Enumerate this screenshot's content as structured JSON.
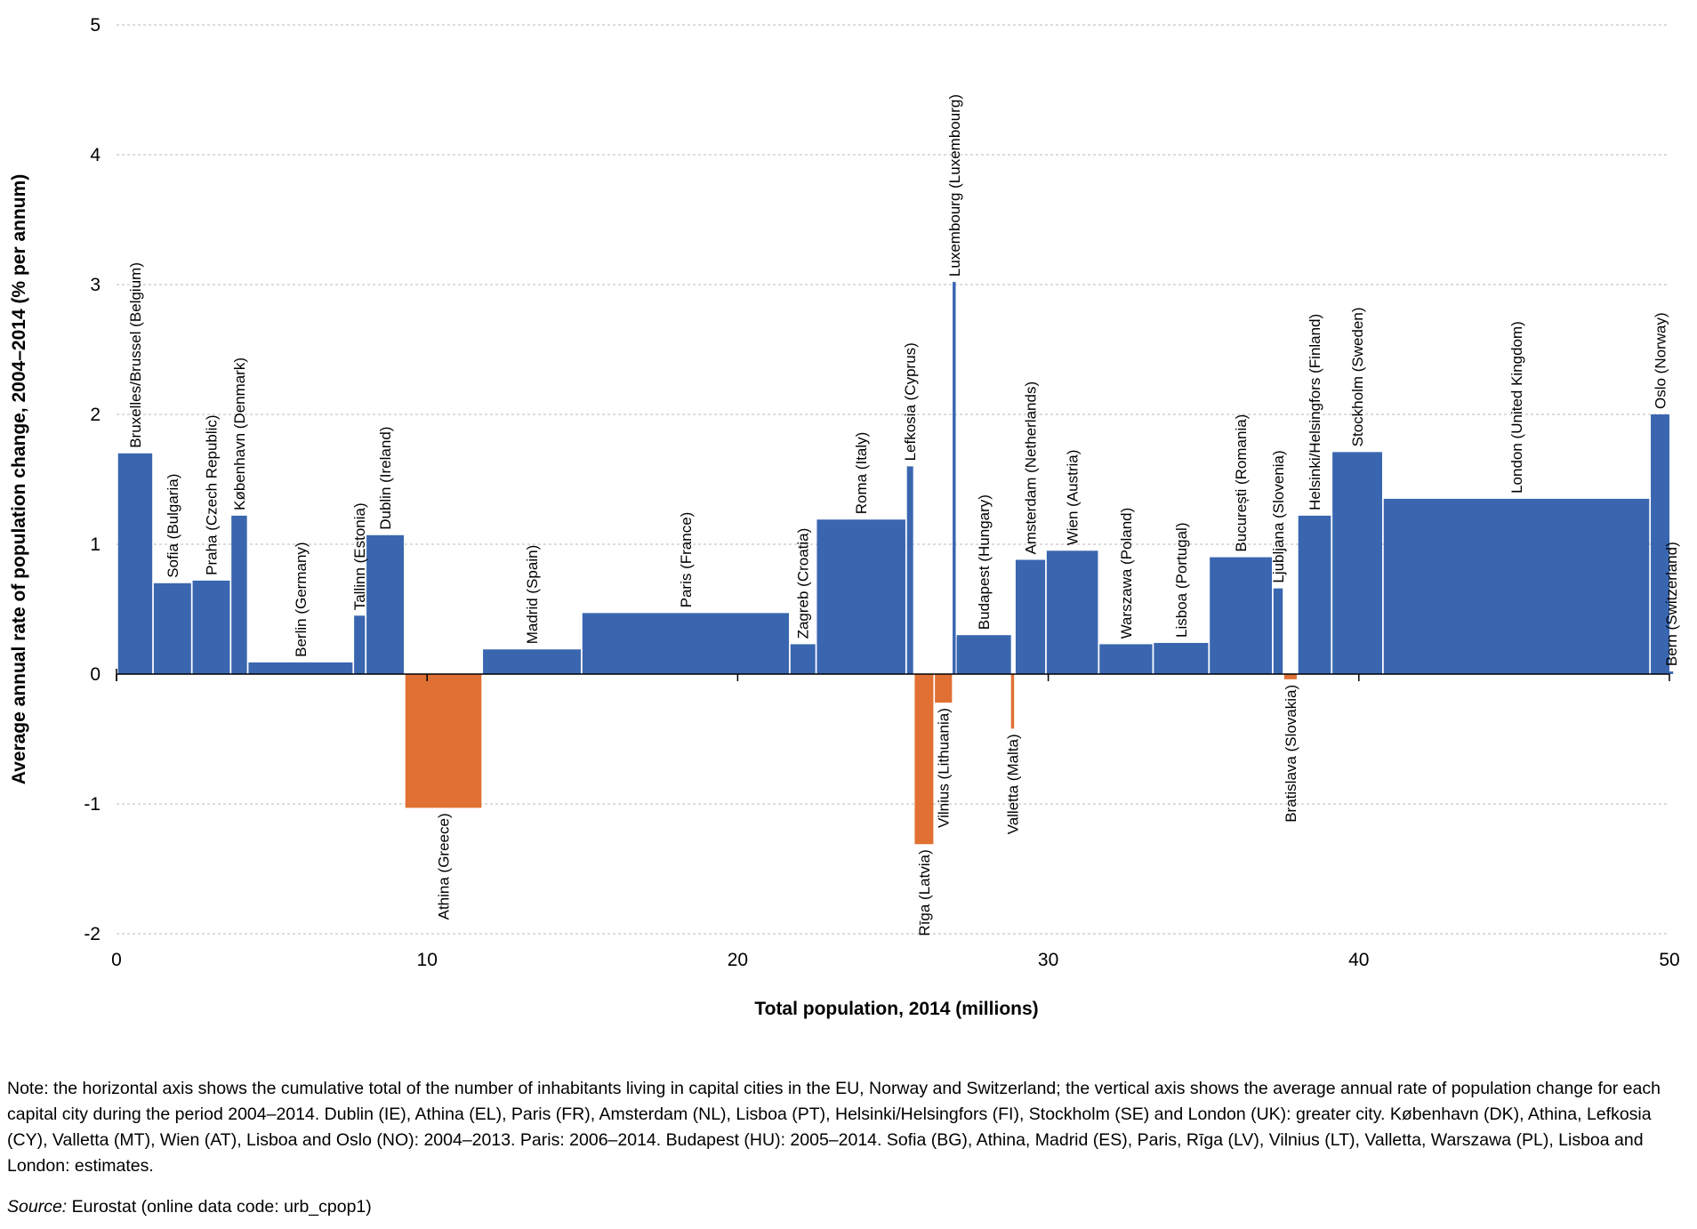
{
  "chart_data": {
    "type": "bar",
    "subtype": "variable-width",
    "xlabel": "Total population,  2014 (millions)",
    "ylabel": "Average annual rate of population change, 2004–2014  (% per annum)",
    "xlim": [
      0,
      50
    ],
    "ylim": [
      -2,
      5
    ],
    "xticks": [
      "0",
      "10",
      "20",
      "30",
      "40",
      "50"
    ],
    "yticks": [
      "-2",
      "-1",
      "0",
      "1",
      "2",
      "3",
      "4",
      "5"
    ],
    "grid": "horizontal dashed",
    "colors": {
      "positive": "#3a66b0",
      "negative": "#e07033"
    },
    "bars": [
      {
        "label": "Bruxelles/Brussel (Belgium)",
        "x0": 0.05,
        "x1": 1.15,
        "value": 1.7
      },
      {
        "label": "Sofia (Bulgaria)",
        "x0": 1.2,
        "x1": 2.4,
        "value": 0.7
      },
      {
        "label": "Praha (Czech Republic)",
        "x0": 2.45,
        "x1": 3.65,
        "value": 0.72
      },
      {
        "label": "København (Denmark)",
        "x0": 3.7,
        "x1": 4.2,
        "value": 1.22
      },
      {
        "label": "Berlin (Germany)",
        "x0": 4.25,
        "x1": 7.6,
        "value": 0.09
      },
      {
        "label": "Tallinn (Estonia)",
        "x0": 7.65,
        "x1": 8.0,
        "value": 0.45
      },
      {
        "label": "Dublin (Ireland)",
        "x0": 8.05,
        "x1": 9.25,
        "value": 1.07
      },
      {
        "label": "Athina (Greece)",
        "x0": 9.3,
        "x1": 11.75,
        "value": -1.03
      },
      {
        "label": "Madrid (Spain)",
        "x0": 11.8,
        "x1": 14.95,
        "value": 0.19
      },
      {
        "label": "Paris (France)",
        "x0": 15.0,
        "x1": 21.65,
        "value": 0.47
      },
      {
        "label": "Zagreb (Croatia)",
        "x0": 21.7,
        "x1": 22.5,
        "value": 0.23
      },
      {
        "label": "Roma (Italy)",
        "x0": 22.55,
        "x1": 25.4,
        "value": 1.19
      },
      {
        "label": "Lefkosia (Cyprus)",
        "x0": 25.45,
        "x1": 25.65,
        "value": 1.6
      },
      {
        "label": "Rīga (Latvia)",
        "x0": 25.7,
        "x1": 26.3,
        "value": -1.31
      },
      {
        "label": "Vilnius (Lithuania)",
        "x0": 26.35,
        "x1": 26.9,
        "value": -0.22
      },
      {
        "label": "Luxembourg (Luxembourg)",
        "x0": 26.92,
        "x1": 27.02,
        "value": 3.02
      },
      {
        "label": "Budapest (Hungary)",
        "x0": 27.05,
        "x1": 28.8,
        "value": 0.3
      },
      {
        "label": "Valletta (Malta)",
        "x0": 28.8,
        "x1": 28.9,
        "value": -0.42
      },
      {
        "label": "Amsterdam (Netherlands)",
        "x0": 28.95,
        "x1": 29.9,
        "value": 0.88
      },
      {
        "label": "Wien (Austria)",
        "x0": 29.95,
        "x1": 31.6,
        "value": 0.95
      },
      {
        "label": "Warszawa (Poland)",
        "x0": 31.65,
        "x1": 33.35,
        "value": 0.23
      },
      {
        "label": "Lisboa (Portugal)",
        "x0": 33.4,
        "x1": 35.15,
        "value": 0.24
      },
      {
        "label": "București (Romania)",
        "x0": 35.2,
        "x1": 37.2,
        "value": 0.9
      },
      {
        "label": "Ljubljana (Slovenia)",
        "x0": 37.25,
        "x1": 37.55,
        "value": 0.66
      },
      {
        "label": "Bratislava (Slovakia)",
        "x0": 37.6,
        "x1": 38.0,
        "value": -0.04
      },
      {
        "label": "Helsinki/Helsingfors (Finland)",
        "x0": 38.05,
        "x1": 39.1,
        "value": 1.22
      },
      {
        "label": "Stockholm (Sweden)",
        "x0": 39.15,
        "x1": 40.75,
        "value": 1.71
      },
      {
        "label": "London (United Kingdom)",
        "x0": 40.8,
        "x1": 49.35,
        "value": 1.35
      },
      {
        "label": "Oslo (Norway)",
        "x0": 49.4,
        "x1": 50.0,
        "value": 2.0
      },
      {
        "label": "Bern (Switzerland)",
        "x0": 50.0,
        "x1": 50.12,
        "value": 0.02
      }
    ]
  },
  "note_text": "Note: the horizontal axis shows the cumulative total of the number of inhabitants living in capital cities in the EU, Norway and Switzerland; the vertical axis shows the average annual rate of population change for each capital city during the period 2004–2014. Dublin (IE), Athina (EL), Paris (FR), Amsterdam (NL), Lisboa (PT), Helsinki/Helsingfors (FI), Stockholm (SE) and London (UK): greater city. København (DK), Athina, Lefkosia (CY), Valletta (MT), Wien (AT), Lisboa and Oslo (NO): 2004–2013. Paris: 2006–2014. Budapest (HU): 2005–2014. Sofia (BG), Athina, Madrid (ES), Paris, Rīga (LV), Vilnius (LT), Valletta, Warszawa (PL), Lisboa and London: estimates.",
  "source": {
    "label": "Source:",
    "text": " Eurostat (online data code: urb_cpop1)"
  }
}
